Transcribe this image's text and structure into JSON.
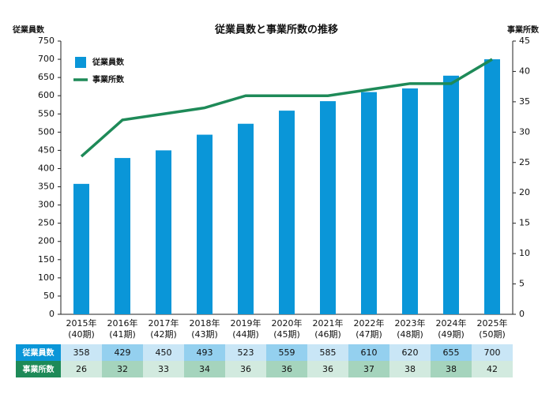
{
  "chart_data": {
    "type": "bar-line",
    "title": "従業員数と事業所数の推移",
    "ylabel": "従業員数",
    "y2label": "事業所数",
    "categories": [
      [
        "2015年",
        "(40期)"
      ],
      [
        "2016年",
        "(41期)"
      ],
      [
        "2017年",
        "(42期)"
      ],
      [
        "2018年",
        "(43期)"
      ],
      [
        "2019年",
        "(44期)"
      ],
      [
        "2020年",
        "(45期)"
      ],
      [
        "2021年",
        "(46期)"
      ],
      [
        "2022年",
        "(47期)"
      ],
      [
        "2023年",
        "(48期)"
      ],
      [
        "2024年",
        "(49期)"
      ],
      [
        "2025年",
        "(50期)"
      ]
    ],
    "series": [
      {
        "name": "従業員数",
        "type": "bar",
        "color": "#0a96d8",
        "values": [
          358,
          429,
          450,
          493,
          523,
          559,
          585,
          610,
          620,
          655,
          700
        ]
      },
      {
        "name": "事業所数",
        "type": "line",
        "axis": "y2",
        "color": "#1e8a58",
        "values": [
          26,
          32,
          33,
          34,
          36,
          36,
          36,
          37,
          38,
          38,
          42
        ]
      }
    ],
    "ylim": [
      0,
      750
    ],
    "yticks": [
      0,
      50,
      100,
      150,
      200,
      250,
      300,
      350,
      400,
      450,
      500,
      550,
      600,
      650,
      700,
      750
    ],
    "y2lim": [
      0,
      45
    ],
    "y2ticks": [
      0,
      5,
      10,
      15,
      20,
      25,
      30,
      35,
      40,
      45
    ],
    "legend": "upper left",
    "grid": false,
    "data_table": true
  }
}
